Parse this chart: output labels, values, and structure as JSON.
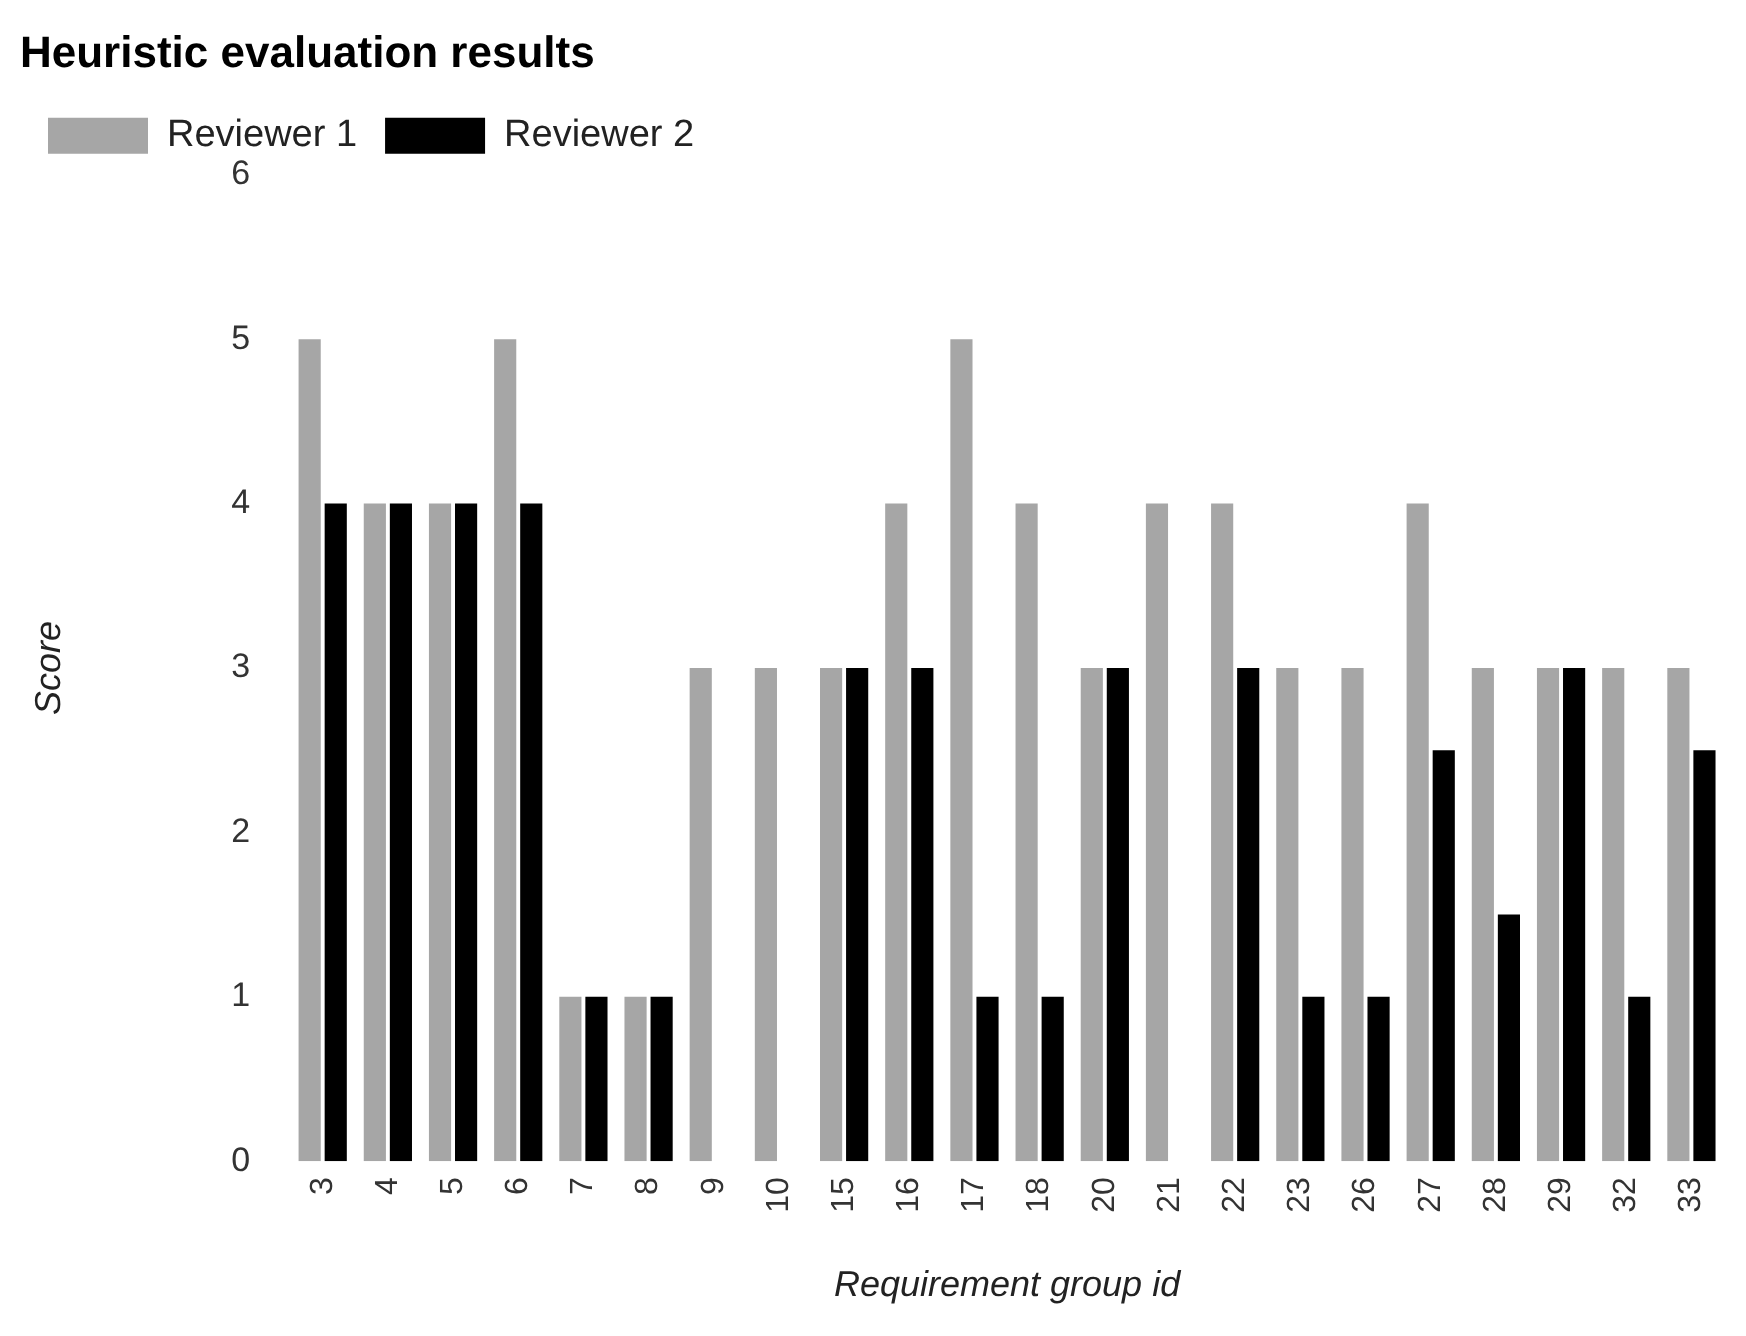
{
  "chart_data": {
    "type": "bar",
    "title": "Heuristic evaluation results",
    "xlabel": "Requirement group id",
    "ylabel": "Score",
    "categories": [
      "3",
      "4",
      "5",
      "6",
      "7",
      "8",
      "9",
      "10",
      "15",
      "16",
      "17",
      "18",
      "20",
      "21",
      "22",
      "23",
      "26",
      "27",
      "28",
      "29",
      "32",
      "33"
    ],
    "series": [
      {
        "name": "Reviewer 1",
        "color": "#a6a6a6",
        "values": [
          5,
          4,
          4,
          5,
          1,
          1,
          3,
          3,
          3,
          4,
          5,
          4,
          3,
          4,
          4,
          3,
          3,
          4,
          3,
          3,
          3,
          3
        ]
      },
      {
        "name": "Reviewer 2",
        "color": "#000000",
        "values": [
          4,
          4,
          4,
          4,
          1,
          1,
          0,
          0,
          3,
          3,
          1,
          1,
          3,
          0,
          3,
          1,
          1,
          2.5,
          1.5,
          3,
          1,
          2.5
        ]
      }
    ],
    "ylim": [
      0,
      6
    ],
    "yticks": [
      0,
      1,
      2,
      3,
      4,
      5,
      6
    ],
    "grid": false,
    "legend": "top left"
  }
}
